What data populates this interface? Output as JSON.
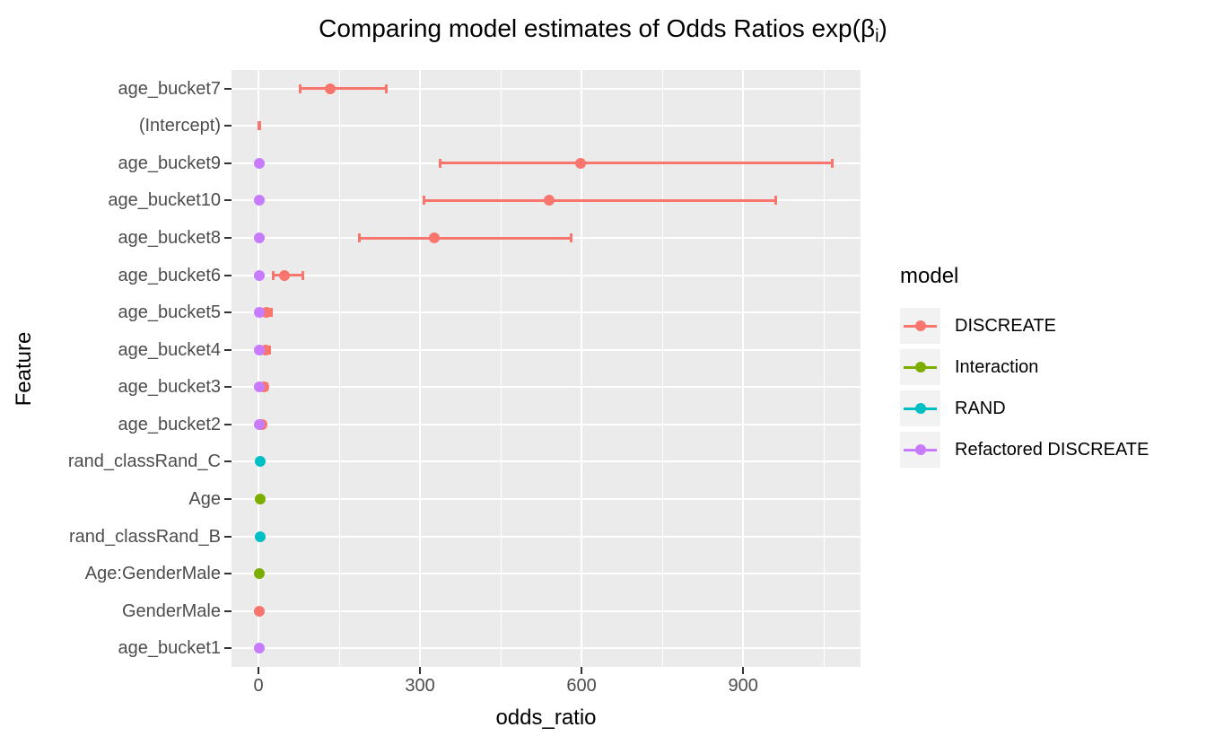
{
  "chart_data": {
    "type": "scatter",
    "title": {
      "text": "Comparing model estimates of Odds Ratios exp(βi)",
      "prefix": "Comparing model estimates of Odds Ratios exp(β",
      "subscript": "i",
      "suffix": ")"
    },
    "xlabel": "odds_ratio",
    "ylabel": "Feature",
    "xlim": [
      -50,
      1118
    ],
    "x_major_ticks": [
      0,
      300,
      600,
      900
    ],
    "x_minor_gridlines": [
      150,
      450,
      750,
      1050
    ],
    "grid": true,
    "panel_bg": "#EBEBEB",
    "gridline_color": "#FFFFFF",
    "tick_color": "#333333",
    "tick_label_color": "#4D4D4D",
    "legend": {
      "title": "model",
      "position": "right",
      "key_bg": "#F2F2F2"
    },
    "models": [
      {
        "name": "DISCREATE",
        "color": "#F8766D"
      },
      {
        "name": "Interaction",
        "color": "#7CAE00"
      },
      {
        "name": "RAND",
        "color": "#00BFC4"
      },
      {
        "name": "Refactored DISCREATE",
        "color": "#C77CFF"
      }
    ],
    "rows": [
      {
        "feature": "age_bucket7",
        "points": [
          {
            "model": "DISCREATE",
            "estimate": 134,
            "ci_low": 77,
            "ci_high": 238
          }
        ]
      },
      {
        "feature": "(Intercept)",
        "points": [
          {
            "model": "DISCREATE",
            "estimate": 1,
            "ci_low": 0.3,
            "ci_high": 2.5,
            "point_hidden": true
          }
        ]
      },
      {
        "feature": "age_bucket9",
        "points": [
          {
            "model": "DISCREATE",
            "estimate": 598,
            "ci_low": 338,
            "ci_high": 1066
          },
          {
            "model": "Refactored DISCREATE",
            "estimate": 1
          }
        ]
      },
      {
        "feature": "age_bucket10",
        "points": [
          {
            "model": "DISCREATE",
            "estimate": 540,
            "ci_low": 307,
            "ci_high": 960
          },
          {
            "model": "Refactored DISCREATE",
            "estimate": 1
          }
        ]
      },
      {
        "feature": "age_bucket8",
        "points": [
          {
            "model": "DISCREATE",
            "estimate": 327,
            "ci_low": 187,
            "ci_high": 581
          },
          {
            "model": "Refactored DISCREATE",
            "estimate": 1
          }
        ]
      },
      {
        "feature": "age_bucket6",
        "points": [
          {
            "model": "DISCREATE",
            "estimate": 48,
            "ci_low": 27,
            "ci_high": 82
          },
          {
            "model": "Refactored DISCREATE",
            "estimate": 2
          }
        ]
      },
      {
        "feature": "age_bucket5",
        "points": [
          {
            "model": "DISCREATE",
            "estimate": 15,
            "ci_low": 8,
            "ci_high": 24
          },
          {
            "model": "Refactored DISCREATE",
            "estimate": 1
          }
        ]
      },
      {
        "feature": "age_bucket4",
        "points": [
          {
            "model": "DISCREATE",
            "estimate": 13,
            "ci_low": 7,
            "ci_high": 20
          },
          {
            "model": "Refactored DISCREATE",
            "estimate": 1
          }
        ]
      },
      {
        "feature": "age_bucket3",
        "points": [
          {
            "model": "DISCREATE",
            "estimate": 10,
            "ci_low": 6,
            "ci_high": 16
          },
          {
            "model": "Refactored DISCREATE",
            "estimate": 2
          }
        ]
      },
      {
        "feature": "age_bucket2",
        "points": [
          {
            "model": "DISCREATE",
            "estimate": 7,
            "ci_low": 4,
            "ci_high": 11
          },
          {
            "model": "Refactored DISCREATE",
            "estimate": 1
          }
        ]
      },
      {
        "feature": "rand_classRand_C",
        "points": [
          {
            "model": "RAND",
            "estimate": 3
          }
        ]
      },
      {
        "feature": "Age",
        "points": [
          {
            "model": "Interaction",
            "estimate": 3
          }
        ]
      },
      {
        "feature": "rand_classRand_B",
        "points": [
          {
            "model": "RAND",
            "estimate": 3
          }
        ]
      },
      {
        "feature": "Age:GenderMale",
        "points": [
          {
            "model": "Interaction",
            "estimate": 2
          }
        ]
      },
      {
        "feature": "GenderMale",
        "points": [
          {
            "model": "DISCREATE",
            "estimate": 2
          }
        ]
      },
      {
        "feature": "age_bucket1",
        "points": [
          {
            "model": "Refactored DISCREATE",
            "estimate": 1
          }
        ]
      }
    ]
  }
}
